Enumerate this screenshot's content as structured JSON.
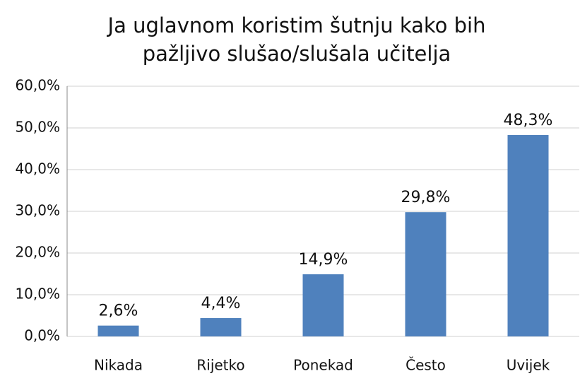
{
  "chart_data": {
    "type": "bar",
    "title": [
      "Ja uglavnom koristim šutnju kako bih",
      "pažljivo slušao/slušala učitelja"
    ],
    "categories": [
      "Nikada",
      "Rijetko",
      "Ponekad",
      "Često",
      "Uvijek"
    ],
    "values": [
      2.6,
      4.4,
      14.9,
      29.8,
      48.3
    ],
    "value_labels": [
      "2,6%",
      "4,4%",
      "14,9%",
      "29,8%",
      "48,3%"
    ],
    "color": "#4f81bd",
    "ylim": [
      0,
      60
    ],
    "yticks": [
      {
        "value": 0,
        "label": "0,0%"
      },
      {
        "value": 10,
        "label": "10,0%"
      },
      {
        "value": 20,
        "label": "20,0%"
      },
      {
        "value": 30,
        "label": "30,0%"
      },
      {
        "value": 40,
        "label": "40,0%"
      },
      {
        "value": 50,
        "label": "50,0%"
      },
      {
        "value": 60,
        "label": "60,0%"
      }
    ],
    "grid": true
  }
}
